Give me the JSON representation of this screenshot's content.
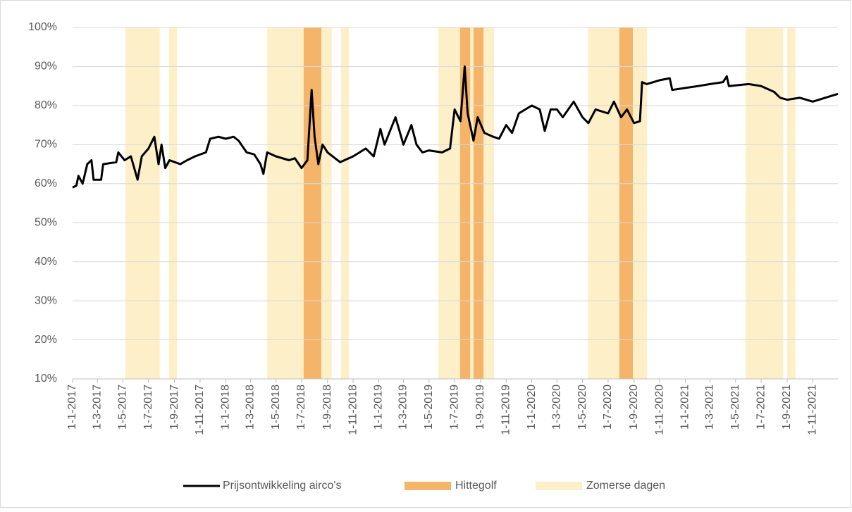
{
  "chart_data": {
    "type": "line",
    "xlim": [
      "1-1-2017",
      "31-12-2021"
    ],
    "xticks": [
      "1-1-2017",
      "1-3-2017",
      "1-5-2017",
      "1-7-2017",
      "1-9-2017",
      "1-11-2017",
      "1-1-2018",
      "1-3-2018",
      "1-5-2018",
      "1-7-2018",
      "1-9-2018",
      "1-11-2018",
      "1-1-2019",
      "1-3-2019",
      "1-5-2019",
      "1-7-2019",
      "1-9-2019",
      "1-11-2019",
      "1-1-2020",
      "1-3-2020",
      "1-5-2020",
      "1-7-2020",
      "1-9-2020",
      "1-11-2020",
      "1-1-2021",
      "1-3-2021",
      "1-5-2021",
      "1-7-2021",
      "1-9-2021",
      "1-11-2021"
    ],
    "ylim": [
      10,
      100
    ],
    "yticks": [
      {
        "value": 10,
        "label": "10%"
      },
      {
        "value": 20,
        "label": "20%"
      },
      {
        "value": 30,
        "label": "30%"
      },
      {
        "value": 40,
        "label": "40%"
      },
      {
        "value": 50,
        "label": "50%"
      },
      {
        "value": 60,
        "label": "60%"
      },
      {
        "value": 70,
        "label": "70%"
      },
      {
        "value": 80,
        "label": "80%"
      },
      {
        "value": 90,
        "label": "90%"
      },
      {
        "value": 100,
        "label": "100%"
      }
    ],
    "grid": true,
    "legend": "bottom",
    "series": [
      {
        "name": "Prijsontwikkeling airco's",
        "color": "#000000",
        "x": [
          "1-1-2017",
          "10-1-2017",
          "15-1-2017",
          "25-1-2017",
          "5-2-2017",
          "15-2-2017",
          "20-2-2017",
          "10-3-2017",
          "15-3-2017",
          "15-4-2017",
          "20-4-2017",
          "5-5-2017",
          "20-5-2017",
          "5-6-2017",
          "15-6-2017",
          "1-7-2017",
          "15-7-2017",
          "25-7-2017",
          "1-8-2017",
          "10-8-2017",
          "20-8-2017",
          "15-9-2017",
          "1-10-2017",
          "20-10-2017",
          "15-11-2017",
          "25-11-2017",
          "15-12-2017",
          "1-1-2018",
          "20-1-2018",
          "1-2-2018",
          "20-2-2018",
          "10-3-2018",
          "25-3-2018",
          "1-4-2018",
          "10-4-2018",
          "1-5-2018",
          "1-6-2018",
          "15-6-2018",
          "1-7-2018",
          "15-7-2018",
          "25-7-2018",
          "1-8-2018",
          "10-8-2018",
          "20-8-2018",
          "1-9-2018",
          "1-10-2018",
          "1-11-2018",
          "1-12-2018",
          "20-12-2018",
          "5-1-2019",
          "15-1-2019",
          "10-2-2019",
          "1-3-2019",
          "20-3-2019",
          "1-4-2019",
          "15-4-2019",
          "1-5-2019",
          "1-6-2019",
          "20-6-2019",
          "1-7-2019",
          "15-7-2019",
          "25-7-2019",
          "1-8-2019",
          "15-8-2019",
          "25-8-2019",
          "10-9-2019",
          "1-10-2019",
          "15-10-2019",
          "1-11-2019",
          "15-11-2019",
          "1-12-2019",
          "1-1-2020",
          "20-1-2020",
          "1-2-2020",
          "15-2-2020",
          "1-3-2020",
          "15-3-2020",
          "10-4-2020",
          "1-5-2020",
          "15-5-2020",
          "1-6-2020",
          "1-7-2020",
          "15-7-2020",
          "1-8-2020",
          "15-8-2020",
          "1-9-2020",
          "15-9-2020",
          "20-9-2020",
          "1-10-2020",
          "1-11-2020",
          "25-11-2020",
          "1-12-2020",
          "1-1-2021",
          "1-2-2021",
          "1-3-2021",
          "1-4-2021",
          "10-4-2021",
          "15-4-2021",
          "1-6-2021",
          "1-7-2021",
          "1-8-2021",
          "15-8-2021",
          "1-9-2021",
          "1-10-2021",
          "1-11-2021",
          "1-12-2021",
          "31-12-2021"
        ],
        "values": [
          59,
          59.5,
          62,
          60,
          65,
          66,
          61,
          61,
          65,
          65.5,
          68,
          66,
          67,
          61,
          67,
          69,
          72,
          65,
          70,
          64,
          66,
          65,
          66,
          67,
          68,
          71.5,
          72,
          71.5,
          72,
          71,
          68,
          67.5,
          65,
          62.5,
          68,
          67,
          66,
          66.5,
          64,
          66,
          84,
          72,
          65,
          70,
          68,
          65.5,
          67,
          69,
          67,
          74,
          70,
          77,
          70,
          75,
          70,
          68,
          68.5,
          68,
          69,
          79,
          76,
          90,
          78,
          71,
          77,
          73,
          72,
          71.5,
          75,
          73,
          78,
          80,
          79,
          73.5,
          79,
          79,
          77,
          81,
          77,
          75.5,
          79,
          78,
          81,
          77,
          79,
          75.5,
          76,
          86,
          85.5,
          86.5,
          87,
          84,
          84.5,
          85,
          85.5,
          86,
          87.5,
          85,
          85.5,
          85,
          83.5,
          82,
          81.5,
          82,
          81,
          82,
          83
        ]
      }
    ],
    "bands": [
      {
        "name": "Hittegolf",
        "color": "#f4b469",
        "ranges": [
          [
            "6-7-2018",
            "17-8-2018"
          ],
          [
            "14-7-2019",
            "7-8-2019"
          ],
          [
            "15-8-2019",
            "8-9-2019"
          ],
          [
            "28-7-2020",
            "29-8-2020"
          ]
        ]
      },
      {
        "name": "Zomerse dagen",
        "color": "#fdf0c9",
        "ranges": [
          [
            "7-5-2017",
            "28-7-2017"
          ],
          [
            "19-8-2017",
            "7-9-2017"
          ],
          [
            "10-4-2018",
            "11-9-2018"
          ],
          [
            "3-10-2018",
            "22-10-2018"
          ],
          [
            "23-5-2019",
            "3-10-2019"
          ],
          [
            "14-5-2020",
            "2-10-2020"
          ],
          [
            "25-5-2021",
            "23-8-2021"
          ],
          [
            "1-9-2021",
            "21-9-2021"
          ]
        ]
      }
    ]
  }
}
